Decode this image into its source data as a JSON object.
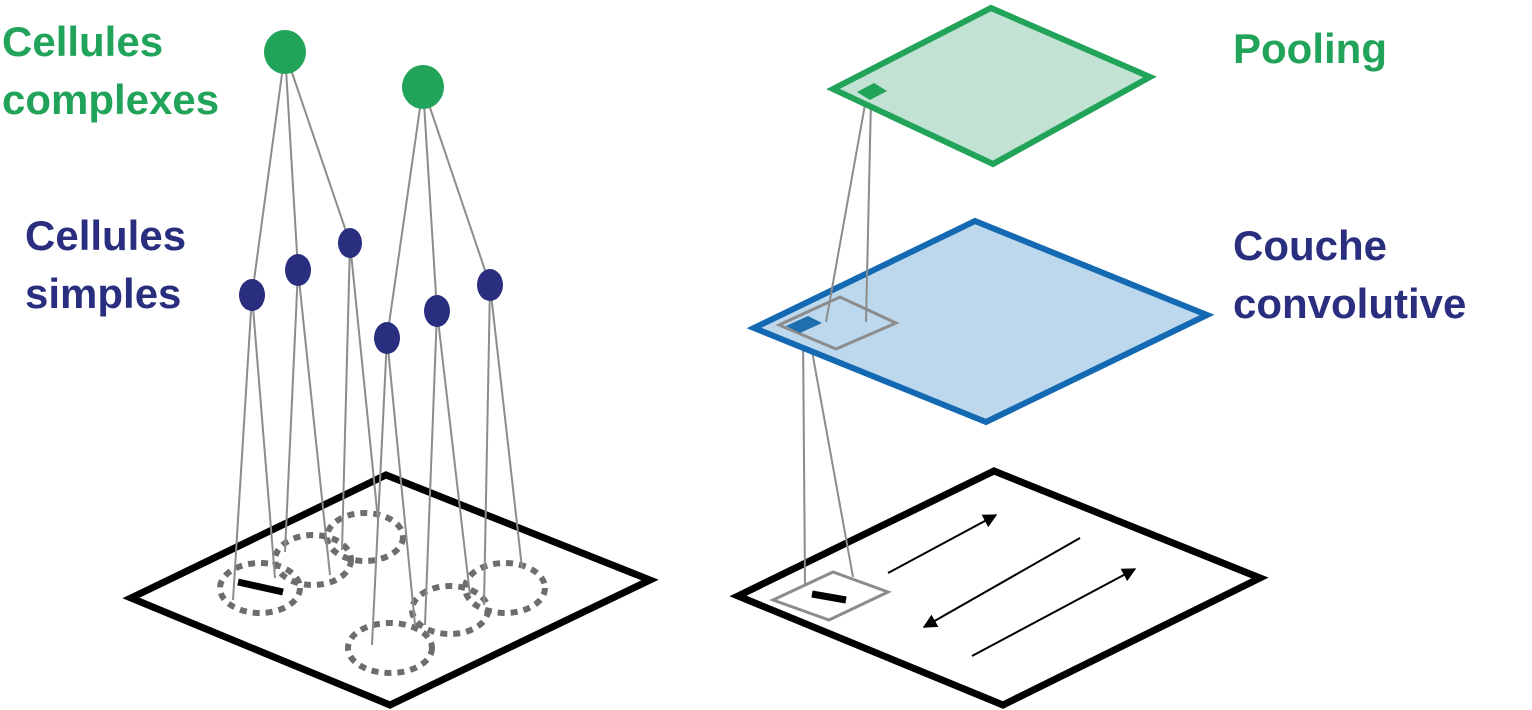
{
  "labels": {
    "complex_cells": [
      "Cellules",
      "complexes"
    ],
    "simple_cells": [
      "Cellules",
      "simples"
    ],
    "pooling": "Pooling",
    "conv_layer": [
      "Couche",
      "convolutive"
    ]
  },
  "colors": {
    "green": "#21A35A",
    "green_fill": "#C2E2D4",
    "navy": "#2A2E7F",
    "blue": "#1469B3",
    "blue_fill": "#BDD8EC",
    "blue_marker": "#1F6FAE",
    "grey_line": "#8C8C8C",
    "dashed_grey": "#6D6D6D",
    "black": "#000000"
  },
  "icons": {
    "complex_cell": "green-filled-circle",
    "simple_cell": "navy-filled-ellipse",
    "receptive_field": "dashed-ellipse",
    "stimulus_bar": "black-bar",
    "scan_direction": "arrow"
  }
}
